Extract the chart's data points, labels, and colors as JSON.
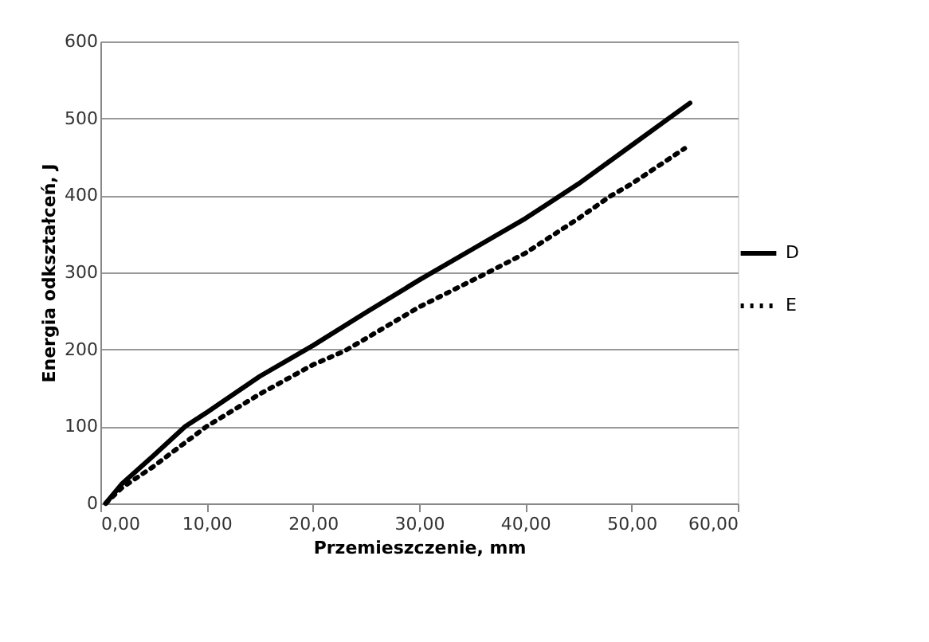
{
  "chart_data": {
    "type": "line",
    "xlabel": "Przemieszczenie, mm",
    "ylabel": "Energia odkształceń, J",
    "xlim": [
      0,
      60
    ],
    "ylim": [
      0,
      600
    ],
    "xticks": [
      {
        "value": 0,
        "label": "0,00"
      },
      {
        "value": 10,
        "label": "10,00"
      },
      {
        "value": 20,
        "label": "20,00"
      },
      {
        "value": 30,
        "label": "30,00"
      },
      {
        "value": 40,
        "label": "40,00"
      },
      {
        "value": 50,
        "label": "50,00"
      },
      {
        "value": 60,
        "label": "60,00"
      }
    ],
    "yticks": [
      0,
      100,
      200,
      300,
      400,
      500,
      600
    ],
    "grid": "y",
    "legend": "right",
    "marker": "none",
    "series": [
      {
        "name": "D",
        "color": "#000000",
        "line_style": "solid",
        "x": [
          0.5,
          2,
          5,
          8,
          10,
          15,
          20,
          25,
          30,
          35,
          40,
          45,
          50,
          53.5,
          55.5
        ],
        "values": [
          0,
          25,
          62,
          100,
          118,
          165,
          205,
          248,
          290,
          330,
          370,
          415,
          465,
          500,
          520
        ]
      },
      {
        "name": "E",
        "color": "#000000",
        "line_style": "dotted",
        "x": [
          0.5,
          2,
          5,
          10,
          15,
          20,
          23,
          30,
          36.5,
          40,
          45,
          48,
          50,
          55
        ],
        "values": [
          0,
          20,
          48,
          100,
          142,
          180,
          198,
          255,
          300,
          325,
          370,
          399,
          415,
          461
        ]
      }
    ]
  }
}
